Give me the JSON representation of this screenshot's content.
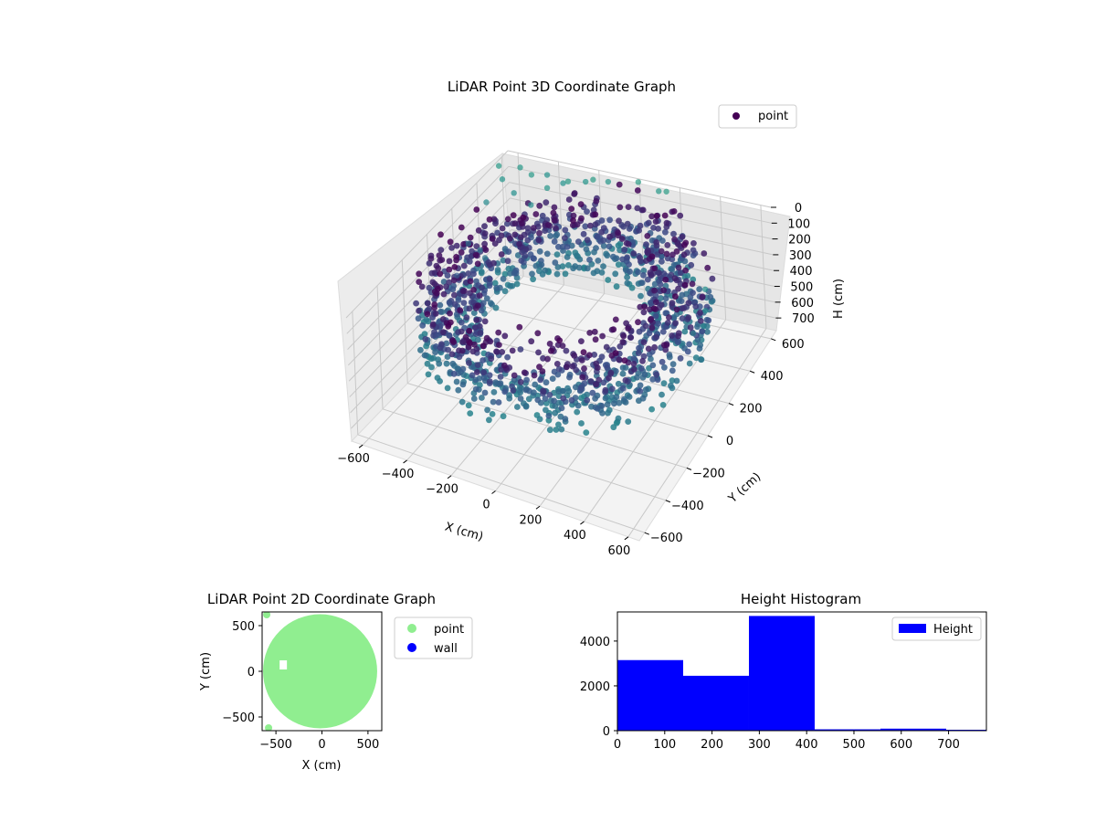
{
  "chart_data": [
    {
      "type": "scatter",
      "projection": "3d",
      "title": "LiDAR Point 3D Coordinate Graph",
      "xlabel": "X (cm)",
      "ylabel": "Y (cm)",
      "zlabel": "H (cm)",
      "xlim": [
        -650,
        650
      ],
      "ylim": [
        -650,
        650
      ],
      "zlim": [
        0,
        780
      ],
      "z_inverted": true,
      "xticks": [
        -600,
        -400,
        -200,
        0,
        200,
        400,
        600
      ],
      "yticks": [
        -600,
        -400,
        -200,
        0,
        200,
        400,
        600
      ],
      "zticks": [
        0,
        100,
        200,
        300,
        400,
        500,
        600,
        700
      ],
      "colormap": "viridis",
      "legend": {
        "entries": [
          "point"
        ],
        "placement": "upper-right"
      },
      "grid": true,
      "structure": {
        "description_data": "ring of dense points",
        "ring_outer_radius": 620,
        "ring_inner_radius": 350,
        "height_range": [
          0,
          400
        ]
      },
      "outliers": [
        {
          "x": -640,
          "y": 560,
          "h": 20
        },
        {
          "x": -600,
          "y": 520,
          "h": 60
        },
        {
          "x": -560,
          "y": 600,
          "h": 40
        },
        {
          "x": -520,
          "y": 480,
          "h": 90
        },
        {
          "x": -480,
          "y": 560,
          "h": 30
        },
        {
          "x": -440,
          "y": 620,
          "h": 70
        },
        {
          "x": -420,
          "y": 450,
          "h": 110
        },
        {
          "x": -380,
          "y": 520,
          "h": 50
        },
        {
          "x": -350,
          "y": 600,
          "h": 80
        },
        {
          "x": -620,
          "y": 420,
          "h": 130
        },
        {
          "x": -300,
          "y": 560,
          "h": 20
        },
        {
          "x": -250,
          "y": 620,
          "h": 60
        },
        {
          "x": -200,
          "y": 600,
          "h": 15
        },
        {
          "x": -150,
          "y": 640,
          "h": 50
        },
        {
          "x": 0,
          "y": 640,
          "h": 10
        },
        {
          "x": 100,
          "y": 640,
          "h": 40
        },
        {
          "x": 150,
          "y": 620,
          "h": 10
        },
        {
          "x": 560,
          "y": 200,
          "h": 90
        },
        {
          "x": 600,
          "y": 120,
          "h": 130
        },
        {
          "x": 620,
          "y": 60,
          "h": 160
        },
        {
          "x": 580,
          "y": 40,
          "h": 200
        },
        {
          "x": -640,
          "y": 300,
          "h": 300
        },
        {
          "x": -640,
          "y": 200,
          "h": 420
        },
        {
          "x": -620,
          "y": 100,
          "h": 500
        },
        {
          "x": -560,
          "y": -100,
          "h": 520
        },
        {
          "x": -500,
          "y": 200,
          "h": 260
        },
        {
          "x": -560,
          "y": 260,
          "h": 280
        }
      ]
    },
    {
      "type": "scatter",
      "title": "LiDAR Point 2D Coordinate Graph",
      "xlabel": "X (cm)",
      "ylabel": "Y (cm)",
      "xlim": [
        -650,
        650
      ],
      "ylim": [
        -650,
        650
      ],
      "xticks": [
        -500,
        0,
        500
      ],
      "yticks": [
        -500,
        0,
        500
      ],
      "series": [
        {
          "name": "point",
          "color": "#90ee90"
        },
        {
          "name": "wall",
          "color": "#0000ff"
        }
      ],
      "legend": {
        "placement": "outside-right"
      },
      "footprint": {
        "center": [
          -20,
          0
        ],
        "radius": 620
      }
    },
    {
      "type": "bar",
      "subtype": "histogram",
      "title": "Height Histogram",
      "xlim": [
        0,
        780
      ],
      "ylim": [
        0,
        5300
      ],
      "xticks": [
        0,
        100,
        200,
        300,
        400,
        500,
        600,
        700
      ],
      "yticks": [
        0,
        2000,
        4000
      ],
      "bin_edges": [
        0,
        139,
        278,
        417,
        556,
        695,
        834
      ],
      "values": [
        3150,
        2450,
        5120,
        60,
        90,
        40
      ],
      "series": [
        {
          "name": "Height",
          "color": "#0000ff"
        }
      ],
      "legend": {
        "placement": "upper-right"
      }
    }
  ]
}
